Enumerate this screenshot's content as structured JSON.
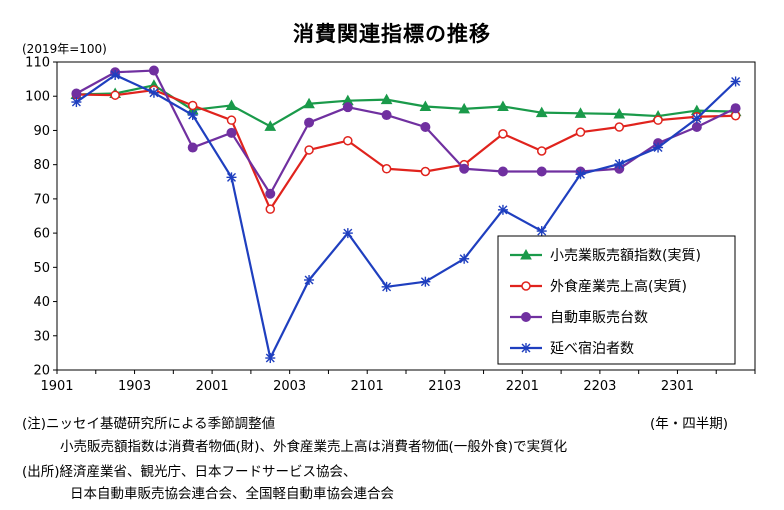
{
  "chart_data": {
    "type": "line",
    "title": "消費関連指標の推移",
    "unit_label": "(2019年=100)",
    "x_axis_unit": "(年・四半期)",
    "categories": [
      "1901",
      "1902",
      "1903",
      "1904",
      "2001",
      "2002",
      "2003",
      "2004",
      "2101",
      "2102",
      "2103",
      "2104",
      "2201",
      "2202",
      "2203",
      "2204",
      "2301",
      "2302"
    ],
    "x_tick_labels": [
      "1901",
      "1903",
      "2001",
      "2003",
      "2101",
      "2103",
      "2201",
      "2203",
      "2301"
    ],
    "ylim": [
      20,
      110
    ],
    "yticks": [
      20,
      30,
      40,
      50,
      60,
      70,
      80,
      90,
      100,
      110
    ],
    "grid": false,
    "legend_position": "right",
    "series": [
      {
        "name": "小売業販売額指数(実質)",
        "color": "#1a9a4a",
        "marker": "triangle",
        "values": [
          100.5,
          100.8,
          103.2,
          96.0,
          97.3,
          91.2,
          97.8,
          98.7,
          99.0,
          97.0,
          96.3,
          97.0,
          95.2,
          95.0,
          94.8,
          94.2,
          95.8,
          95.5
        ]
      },
      {
        "name": "外食産業売上高(実質)",
        "color": "#e0231d",
        "marker": "circle-open",
        "values": [
          100.5,
          100.3,
          101.8,
          97.3,
          93.0,
          67.0,
          84.3,
          87.0,
          78.8,
          78.0,
          80.0,
          89.0,
          84.0,
          89.5,
          91.0,
          93.0,
          94.0,
          94.3
        ]
      },
      {
        "name": "自動車販売台数",
        "color": "#7030a0",
        "marker": "circle",
        "values": [
          100.8,
          107.0,
          107.5,
          85.0,
          89.3,
          71.5,
          92.3,
          96.8,
          94.5,
          91.0,
          78.8,
          78.0,
          78.0,
          78.0,
          78.8,
          86.3,
          91.0,
          96.5
        ]
      },
      {
        "name": "延べ宿泊者数",
        "color": "#1f3fbf",
        "marker": "star",
        "values": [
          98.3,
          106.2,
          101.0,
          94.5,
          76.3,
          23.5,
          46.3,
          60.0,
          44.3,
          45.8,
          52.5,
          66.8,
          60.6,
          77.2,
          80.2,
          85.0,
          93.5,
          104.3
        ]
      }
    ]
  },
  "notes": {
    "line1": "(注)ニッセイ基礎研究所による季節調整値",
    "line2": "小売販売額指数は消費者物価(財)、外食産業売上高は消費者物価(一般外食)で実質化",
    "line3": "(出所)経済産業省、観光庁、日本フードサービス協会、",
    "line4": "日本自動車販売協会連合会、全国軽自動車協会連合会"
  }
}
